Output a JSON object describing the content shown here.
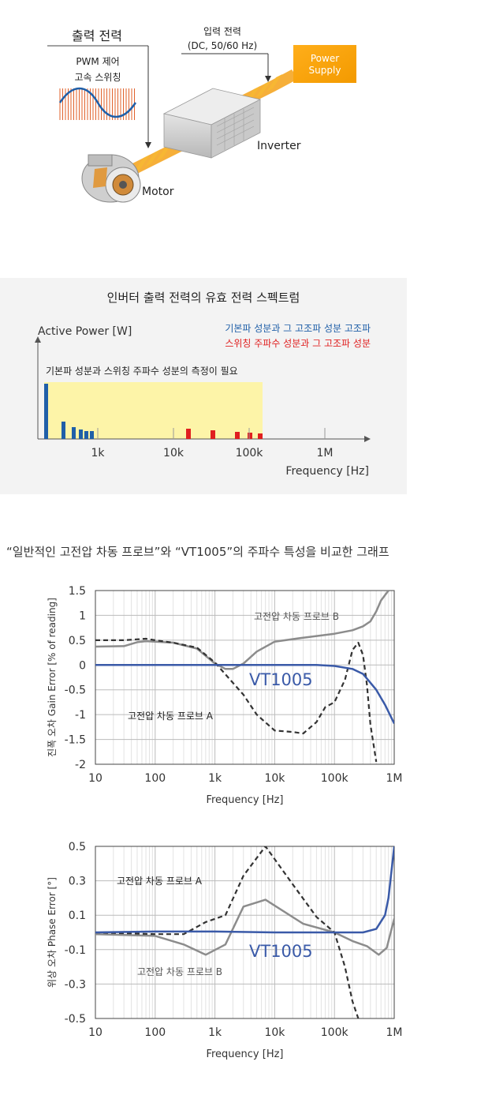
{
  "diagram": {
    "output_power": "출력 전력",
    "pwm_line1": "PWM 제어",
    "pwm_line2": "고속 스위칭",
    "input_power": "입력 전력",
    "input_spec": "(DC, 50/60 Hz)",
    "power_supply_line1": "Power",
    "power_supply_line2": "Supply",
    "inverter": "Inverter",
    "motor": "Motor"
  },
  "spectrum": {
    "title": "인버터 출력 전력의 유효 전력 스펙트럼",
    "ylabel": "Active Power [W]",
    "xlabel": "Frequency [Hz]",
    "legend_blue": "기본파 성분과 그 고조파 성분 고조파",
    "legend_red": "스위칭 주파수 성분과 그 고조파 성분",
    "note": "기본파 성분과 스위칭 주파수 성분의 측정이 필요",
    "colors": {
      "blue": "#1f5fa8",
      "red": "#e01f1f",
      "highlight": "#fdf4a8"
    }
  },
  "section_heading": "“일반적인 고전압 차동 프로브”와  “VT1005”의 주파수 특성을 비교한 그래프",
  "chart_data": [
    {
      "type": "line",
      "ylabel": "진폭 오차 Gain Error [% of reading]",
      "xlabel": "Frequency [Hz]",
      "xscale": "log",
      "xlim": [
        10,
        1000000
      ],
      "ylim": [
        -2,
        1.5
      ],
      "xticks": [
        {
          "v": 10,
          "label": "10"
        },
        {
          "v": 100,
          "label": "100"
        },
        {
          "v": 1000,
          "label": "1k"
        },
        {
          "v": 10000,
          "label": "10k"
        },
        {
          "v": 100000,
          "label": "100k"
        },
        {
          "v": 1000000,
          "label": "1M"
        }
      ],
      "yticks": [
        {
          "v": 1.5,
          "label": "1.5"
        },
        {
          "v": 1,
          "label": "1"
        },
        {
          "v": 0.5,
          "label": "0.5"
        },
        {
          "v": 0,
          "label": "0"
        },
        {
          "v": -0.5,
          "label": "-0.5"
        },
        {
          "v": -1,
          "label": "-1"
        },
        {
          "v": -1.5,
          "label": "-1.5"
        },
        {
          "v": -2,
          "label": "-2"
        }
      ],
      "grid": true,
      "series": [
        {
          "name": "VT1005",
          "color": "#3a5aa8",
          "style": "solid",
          "x": [
            10,
            100,
            1000,
            10000,
            50000,
            100000,
            200000,
            300000,
            500000,
            700000,
            1000000
          ],
          "y": [
            0,
            0,
            0,
            0,
            0,
            -0.02,
            -0.08,
            -0.18,
            -0.5,
            -0.8,
            -1.18
          ]
        },
        {
          "name": "고전압 차동 프로브 B",
          "color": "#8c8c8c",
          "style": "solid",
          "x": [
            10,
            30,
            50,
            70,
            100,
            200,
            500,
            1000,
            1500,
            2000,
            3000,
            5000,
            10000,
            30000,
            100000,
            200000,
            300000,
            400000,
            500000,
            600000,
            800000
          ],
          "y": [
            0.37,
            0.38,
            0.46,
            0.48,
            0.47,
            0.45,
            0.33,
            0.03,
            -0.08,
            -0.08,
            0.03,
            0.27,
            0.47,
            0.55,
            0.63,
            0.7,
            0.78,
            0.88,
            1.08,
            1.3,
            1.5
          ]
        },
        {
          "name": "고전압 차동 프로브 A",
          "color": "#333333",
          "style": "dashed",
          "x": [
            10,
            30,
            70,
            100,
            200,
            500,
            1000,
            3000,
            5000,
            10000,
            20000,
            30000,
            50000,
            70000,
            100000,
            150000,
            200000,
            250000,
            300000,
            350000,
            400000,
            500000
          ],
          "y": [
            0.5,
            0.5,
            0.53,
            0.5,
            0.45,
            0.35,
            0.05,
            -0.6,
            -1.0,
            -1.32,
            -1.35,
            -1.38,
            -1.15,
            -0.85,
            -0.75,
            -0.3,
            0.3,
            0.45,
            0.2,
            -0.4,
            -1.2,
            -1.95
          ]
        }
      ],
      "annotations": {
        "vt1005": "VT1005",
        "probe_a": "고전압 차동 프로브 A",
        "probe_b": "고전압 차동 프로브 B"
      }
    },
    {
      "type": "line",
      "ylabel": "위상 오차  Phase Error [°]",
      "xlabel": "Frequency [Hz]",
      "xscale": "log",
      "xlim": [
        10,
        1000000
      ],
      "ylim": [
        -0.5,
        0.5
      ],
      "xticks": [
        {
          "v": 10,
          "label": "10"
        },
        {
          "v": 100,
          "label": "100"
        },
        {
          "v": 1000,
          "label": "1k"
        },
        {
          "v": 10000,
          "label": "10k"
        },
        {
          "v": 100000,
          "label": "100k"
        },
        {
          "v": 1000000,
          "label": "1M"
        }
      ],
      "yticks": [
        {
          "v": 0.5,
          "label": "0.5"
        },
        {
          "v": 0.3,
          "label": "0.3"
        },
        {
          "v": 0.1,
          "label": "0.1"
        },
        {
          "v": -0.1,
          "label": "-0.1"
        },
        {
          "v": -0.3,
          "label": "-0.3"
        },
        {
          "v": -0.5,
          "label": "-0.5"
        }
      ],
      "grid": true,
      "series": [
        {
          "name": "VT1005",
          "color": "#3a5aa8",
          "style": "solid",
          "x": [
            10,
            100,
            1000,
            10000,
            100000,
            300000,
            500000,
            700000,
            800000,
            1000000
          ],
          "y": [
            0.0,
            0.005,
            0.005,
            0.0,
            0.0,
            0.0,
            0.02,
            0.1,
            0.2,
            0.5
          ]
        },
        {
          "name": "고전압 차동 프로브 B",
          "color": "#8c8c8c",
          "style": "solid",
          "x": [
            10,
            100,
            300,
            700,
            1500,
            3000,
            7000,
            30000,
            100000,
            200000,
            350000,
            550000,
            750000,
            1000000
          ],
          "y": [
            -0.01,
            -0.02,
            -0.07,
            -0.13,
            -0.07,
            0.15,
            0.19,
            0.05,
            0.0,
            -0.05,
            -0.08,
            -0.13,
            -0.09,
            0.08
          ]
        },
        {
          "name": "고전압 차동 프로브 A",
          "color": "#333333",
          "style": "dashed",
          "x": [
            10,
            100,
            300,
            700,
            1500,
            3000,
            7000,
            20000,
            50000,
            100000,
            150000,
            200000,
            250000
          ],
          "y": [
            0.0,
            -0.01,
            -0.01,
            0.06,
            0.1,
            0.33,
            0.5,
            0.28,
            0.09,
            0.0,
            -0.2,
            -0.4,
            -0.5
          ]
        }
      ],
      "annotations": {
        "vt1005": "VT1005",
        "probe_a": "고전압 차동 프로브 A",
        "probe_b": "고전압 차동 프로브 B"
      }
    }
  ]
}
